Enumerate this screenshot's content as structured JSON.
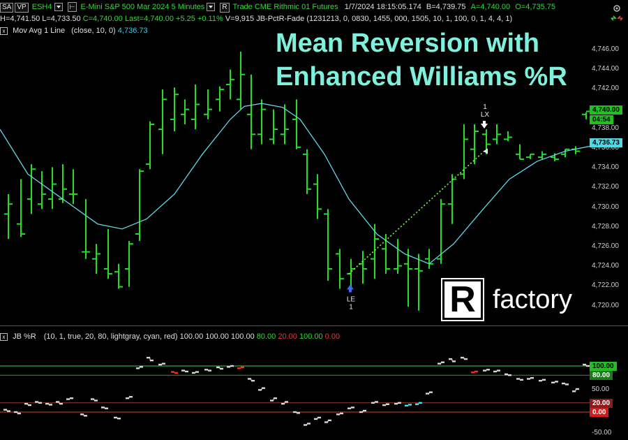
{
  "toolbar": {
    "sa_label": "SA",
    "vp_label": "VP",
    "symbol": "ESH4",
    "instrument": "E-Mini S&P 500 Mar 2024  5 Minutes",
    "r_label": "R",
    "feed": "Trade  CME  Rithmic 01  Futures",
    "datetime": "1/7/2024  18:15:05.174",
    "bid": "B=4,739.75",
    "ask": "A=4,740.00",
    "open": "O=4,735.75"
  },
  "ohlc_line": {
    "high": "H=4,741.50",
    "low": "L=4,733.50",
    "close": "C=4,740.00",
    "last": "Last=4,740.00",
    "change": "+5.25",
    "pct": "+0.11%",
    "volume": "V=9,915",
    "strategy": "JB-PctR-Fade (1231213, 0, 0830, 1455, 000, 1505, 10, 1, 100, 0, 1, 4, 4, 1)"
  },
  "ma_legend": {
    "close_label": "x",
    "name": "Mov Avg 1 Line",
    "params": "(close,  10,  0)",
    "value": "4,736.73"
  },
  "overlay_title": {
    "line1": "Mean Reversion with",
    "line2": "Enhanced Williams %R"
  },
  "logo": {
    "mark": "R",
    "text": "factory"
  },
  "price_axis": {
    "ticks": [
      "4,746.00",
      "4,744.00",
      "4,742.00",
      "4,740.00",
      "4,738.00",
      "4,736.00",
      "4,734.00",
      "4,732.00",
      "4,730.00",
      "4,728.00",
      "4,726.00",
      "4,724.00",
      "4,722.00",
      "4,720.00"
    ],
    "last_tag": "4,740.00",
    "timer_tag": "04:54",
    "ma_tag": "4,736.73"
  },
  "trades": {
    "entry_label": "LE",
    "entry_qty": "1",
    "exit_label": "LX",
    "exit_qty": "1"
  },
  "pctr_legend": {
    "close_label": "x",
    "name": "JB %R",
    "params": "(10,  1,  true,  20,  80,  lightgray,  cyan,  red)",
    "v1": "100.00",
    "v2": "100.00",
    "v3": "100.00",
    "v4": "80.00",
    "v5": "20.00",
    "v6": "100.00",
    "v7": "0.00"
  },
  "pctr_axis": {
    "ticks": [
      "50.00",
      "-50.00"
    ],
    "tag_100": "100.00",
    "tag_80": "80.00",
    "tag_20": "20.00",
    "tag_0": "0.00"
  },
  "colors": {
    "bar": "#21e021",
    "ma": "#5fd7e6",
    "band_upper": "#3fcf3f",
    "band_lower": "#d24a3a",
    "title": "#7ef0dc"
  }
}
